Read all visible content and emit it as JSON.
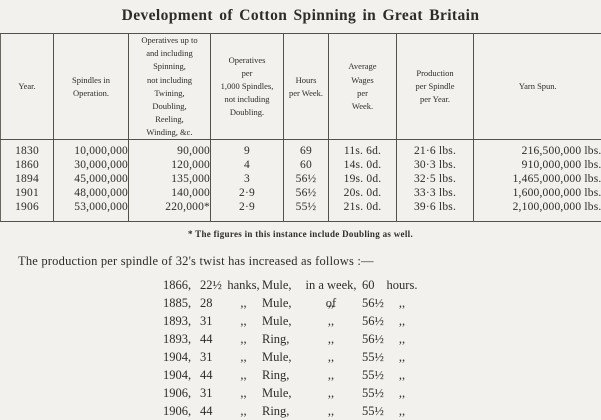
{
  "title": "Development of Cotton Spinning in Great Britain",
  "table": {
    "headers": [
      "Year.",
      "Spindles in\nOperation.",
      "Operatives up to\nand including\nSpinning,\nnot including\nTwining,\nDoubling,\nReeling,\nWinding, &c.",
      "Operatives\nper\n1,000 Spindles,\nnot including\nDoubling.",
      "Hours\nper Week.",
      "Average\nWages\nper\nWeek.",
      "Production\nper Spindle\nper Year.",
      "Yarn Spun."
    ],
    "rows": [
      [
        "1830",
        "10,000,000",
        "90,000",
        "9",
        "69",
        "11s. 6d.",
        "21·6 lbs.",
        "216,500,000 lbs."
      ],
      [
        "1860",
        "30,000,000",
        "120,000",
        "4",
        "60",
        "14s. 0d.",
        "30·3 lbs.",
        "910,000,000 lbs."
      ],
      [
        "1894",
        "45,000,000",
        "135,000",
        "3",
        "56½",
        "19s. 0d.",
        "32·5 lbs.",
        "1,465,000,000 lbs."
      ],
      [
        "1901",
        "48,000,000",
        "140,000",
        "2·9",
        "56½",
        "20s. 0d.",
        "33·3 lbs.",
        "1,600,000,000 lbs."
      ],
      [
        "1906",
        "53,000,000",
        "220,000*",
        "2·9",
        "55½",
        "21s. 0d.",
        "39·6 lbs.",
        "2,100,000,000 lbs."
      ]
    ]
  },
  "footnote": "* The figures in this instance include Doubling as well.",
  "paragraph": "The production per spindle of 32's twist has increased as follows :—",
  "increase_list": {
    "rows": [
      [
        "1866,",
        "22½",
        "hanks,",
        "Mule,",
        "in a week, of",
        "60",
        "hours."
      ],
      [
        "1885,",
        "28",
        ",,",
        "Mule,",
        ",,",
        "56½",
        ",,"
      ],
      [
        "1893,",
        "31",
        ",,",
        "Mule,",
        ",,",
        "56½",
        ",,"
      ],
      [
        "1893,",
        "44",
        ",,",
        "Ring,",
        ",,",
        "56½",
        ",,"
      ],
      [
        "1904,",
        "31",
        ",,",
        "Mule,",
        ",,",
        "55½",
        ",,"
      ],
      [
        "1904,",
        "44",
        ",,",
        "Ring,",
        ",,",
        "55½",
        ",,"
      ],
      [
        "1906,",
        "31",
        ",,",
        "Mule,",
        ",,",
        "55½",
        ",,"
      ],
      [
        "1906,",
        "44",
        ",,",
        "Ring,",
        ",,",
        "55½",
        ",,"
      ]
    ]
  }
}
